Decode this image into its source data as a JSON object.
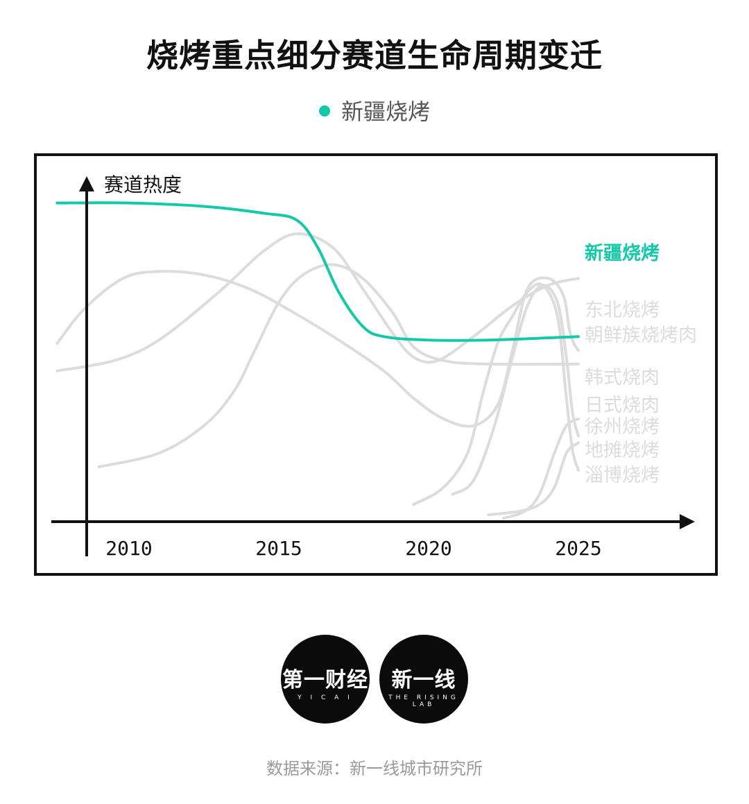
{
  "title": "烧烤重点细分赛道生命周期变迁",
  "legend": {
    "label": "新疆烧烤"
  },
  "colors": {
    "highlight": "#14c8a8",
    "muted": "#dcdcdc",
    "axis": "#111111"
  },
  "logos": [
    {
      "main": "第一财经",
      "sub": "Y I C A I"
    },
    {
      "main": "新一线",
      "sub": "THE RISING LAB"
    }
  ],
  "source": "数据来源：新一线城市研究所",
  "chart_data": {
    "type": "line",
    "ylabel": "赛道热度",
    "xlabel": "",
    "x_ticks": [
      "2010",
      "2015",
      "2020",
      "2025"
    ],
    "xlim": [
      2007.5,
      2029
    ],
    "ylim": [
      0,
      100
    ],
    "highlight": "新疆烧烤",
    "series": [
      {
        "name": "新疆烧烤",
        "highlight": true,
        "points": [
          [
            2007.6,
            93
          ],
          [
            2010,
            93
          ],
          [
            2012.5,
            92
          ],
          [
            2014.5,
            90
          ],
          [
            2015.6,
            88
          ],
          [
            2016.3,
            80
          ],
          [
            2017,
            67
          ],
          [
            2017.8,
            57
          ],
          [
            2018.5,
            54
          ],
          [
            2020,
            53
          ],
          [
            2022,
            53
          ],
          [
            2025,
            54
          ]
        ]
      },
      {
        "name": "东北烧烤",
        "points": [
          [
            2007.6,
            44
          ],
          [
            2009.5,
            47
          ],
          [
            2011,
            53
          ],
          [
            2013,
            67
          ],
          [
            2014.5,
            79
          ],
          [
            2015.6,
            84
          ],
          [
            2016.8,
            80
          ],
          [
            2017.8,
            68
          ],
          [
            2018.8,
            55
          ],
          [
            2019.5,
            48
          ],
          [
            2020.3,
            47
          ],
          [
            2021.5,
            54
          ],
          [
            2022.8,
            63
          ],
          [
            2024,
            69
          ],
          [
            2025,
            71
          ]
        ]
      },
      {
        "name": "朝鲜族烧烤肉",
        "points": [
          [
            2007.6,
            52
          ],
          [
            2008.5,
            62
          ],
          [
            2009.8,
            71
          ],
          [
            2011,
            73
          ],
          [
            2012.5,
            72
          ],
          [
            2014,
            68
          ],
          [
            2015.5,
            61
          ],
          [
            2017,
            53
          ],
          [
            2018.5,
            44
          ],
          [
            2019.5,
            36
          ],
          [
            2020.5,
            30
          ],
          [
            2021.5,
            28
          ],
          [
            2022.3,
            34
          ],
          [
            2022.8,
            50
          ],
          [
            2023.3,
            68
          ],
          [
            2024,
            71
          ],
          [
            2024.5,
            66
          ],
          [
            2024.7,
            56
          ],
          [
            2024.85,
            52
          ],
          [
            2025,
            50
          ]
        ]
      },
      {
        "name": "韩式烧肉",
        "points": [
          [
            2009,
            16
          ],
          [
            2011,
            20
          ],
          [
            2012.5,
            28
          ],
          [
            2013.5,
            38
          ],
          [
            2014.2,
            50
          ],
          [
            2015,
            64
          ],
          [
            2015.8,
            72
          ],
          [
            2016.8,
            75
          ],
          [
            2017.8,
            71
          ],
          [
            2018.8,
            61
          ],
          [
            2019.5,
            51
          ],
          [
            2020.5,
            47
          ],
          [
            2022,
            46
          ],
          [
            2025,
            46
          ]
        ]
      },
      {
        "name": "日式烧肉",
        "points": [
          [
            2020.8,
            8
          ],
          [
            2021.5,
            12
          ],
          [
            2022.2,
            28
          ],
          [
            2022.8,
            48
          ],
          [
            2023.3,
            63
          ],
          [
            2023.8,
            69
          ],
          [
            2024.3,
            64
          ],
          [
            2024.6,
            48
          ],
          [
            2024.8,
            32
          ],
          [
            2025,
            25
          ]
        ]
      },
      {
        "name": "徐州烧烤",
        "points": [
          [
            2019.5,
            5
          ],
          [
            2020.5,
            10
          ],
          [
            2021.3,
            20
          ],
          [
            2021.8,
            37
          ],
          [
            2022.3,
            52
          ],
          [
            2022.8,
            60
          ],
          [
            2023.3,
            67
          ],
          [
            2023.8,
            69
          ],
          [
            2024.3,
            60
          ],
          [
            2024.6,
            36
          ],
          [
            2024.8,
            21
          ],
          [
            2025,
            15
          ]
        ]
      },
      {
        "name": "地摊烧烤",
        "points": [
          [
            2022,
            2
          ],
          [
            2023,
            3
          ],
          [
            2023.7,
            5
          ],
          [
            2024.2,
            10
          ],
          [
            2024.6,
            20
          ],
          [
            2025,
            23
          ]
        ]
      },
      {
        "name": "淄博烧烤",
        "points": [
          [
            2022.5,
            1
          ],
          [
            2023.2,
            3
          ],
          [
            2023.7,
            8
          ],
          [
            2024.2,
            20
          ],
          [
            2024.6,
            28
          ],
          [
            2025,
            30
          ]
        ]
      }
    ],
    "grid": false,
    "legend_position": "top-center"
  }
}
